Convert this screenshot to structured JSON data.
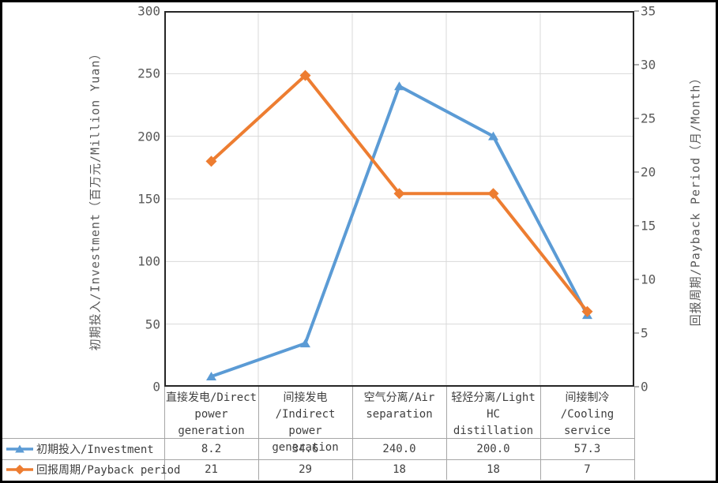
{
  "chart_data": {
    "type": "line",
    "categories": [
      "直接发电/Direct power generation",
      "间接发电/Indirect power generation",
      "空气分离/Air separation",
      "轻烃分离/Light HC distillation",
      "间接制冷/Cooling service"
    ],
    "categories_display": [
      [
        "直接发电/Direct",
        "power",
        "generation"
      ],
      [
        "间接发电",
        "/Indirect power",
        "generation"
      ],
      [
        "空气分离/Air",
        "separation"
      ],
      [
        "轻烃分离/Light",
        "HC distillation"
      ],
      [
        "间接制冷",
        "/Cooling",
        "service"
      ]
    ],
    "series": [
      {
        "name": "初期投入/Investment",
        "axis": "left",
        "marker": "triangle",
        "color": "#5B9BD5",
        "values": [
          8.2,
          34.6,
          240.0,
          200.0,
          57.3
        ],
        "display_values": [
          "8.2",
          "34.6",
          "240.0",
          "200.0",
          "57.3"
        ]
      },
      {
        "name": "回报周期/Payback period",
        "axis": "right",
        "marker": "diamond",
        "color": "#ED7D31",
        "values": [
          21,
          29,
          18,
          18,
          7
        ],
        "display_values": [
          "21",
          "29",
          "18",
          "18",
          "7"
        ]
      }
    ],
    "left_axis": {
      "title": "初期投入/Investment（百万元/Million Yuan）",
      "min": 0,
      "max": 300,
      "ticks": [
        0,
        50,
        100,
        150,
        200,
        250,
        300
      ]
    },
    "right_axis": {
      "title": "回报周期/Payback Period（月/Month）",
      "min": 0,
      "max": 35,
      "ticks": [
        0,
        5,
        10,
        15,
        20,
        25,
        30,
        35
      ]
    },
    "grid": true,
    "legend_position": "table-left"
  },
  "colors": {
    "series_blue": "#5B9BD5",
    "series_orange": "#ED7D31",
    "gridline": "#D9D9D9",
    "plot_border": "#262626",
    "tick_text": "#595959",
    "label_text": "#3F3F3F",
    "table_border": "#A6A6A6",
    "frame_border": "#000000",
    "background": "#FFFFFF"
  }
}
